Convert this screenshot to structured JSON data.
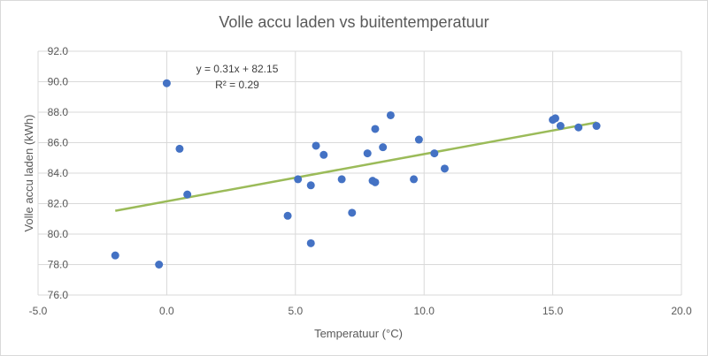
{
  "chart_data": {
    "type": "scatter",
    "title": "Volle accu laden vs buitentemperatuur",
    "xlabel": "Temperatuur (°C)",
    "ylabel": "Volle accu laden (kWh)",
    "xlim": [
      -5,
      20
    ],
    "ylim": [
      76,
      92
    ],
    "xticks": [
      -5,
      0,
      5,
      10,
      15,
      20
    ],
    "xtick_labels": [
      "-5.0",
      "0.0",
      "5.0",
      "10.0",
      "15.0",
      "20.0"
    ],
    "yticks": [
      76,
      78,
      80,
      82,
      84,
      86,
      88,
      90,
      92
    ],
    "ytick_labels": [
      "76.0",
      "78.0",
      "80.0",
      "82.0",
      "84.0",
      "86.0",
      "88.0",
      "90.0",
      "92.0"
    ],
    "grid": true,
    "legend": "none",
    "marker_color": "#4472c4",
    "trendline_color": "#9bbb59",
    "points": [
      {
        "x": -2.0,
        "y": 78.6
      },
      {
        "x": -0.3,
        "y": 78.0
      },
      {
        "x": 0.0,
        "y": 89.9
      },
      {
        "x": 0.5,
        "y": 85.6
      },
      {
        "x": 0.8,
        "y": 82.6
      },
      {
        "x": 4.7,
        "y": 81.2
      },
      {
        "x": 5.1,
        "y": 83.6
      },
      {
        "x": 5.6,
        "y": 83.2
      },
      {
        "x": 5.6,
        "y": 79.4
      },
      {
        "x": 5.8,
        "y": 85.8
      },
      {
        "x": 6.1,
        "y": 85.2
      },
      {
        "x": 6.8,
        "y": 83.6
      },
      {
        "x": 7.2,
        "y": 81.4
      },
      {
        "x": 7.8,
        "y": 85.3
      },
      {
        "x": 8.0,
        "y": 83.5
      },
      {
        "x": 8.1,
        "y": 83.4
      },
      {
        "x": 8.1,
        "y": 86.9
      },
      {
        "x": 8.4,
        "y": 85.7
      },
      {
        "x": 8.7,
        "y": 87.8
      },
      {
        "x": 9.6,
        "y": 83.6
      },
      {
        "x": 9.8,
        "y": 86.2
      },
      {
        "x": 10.4,
        "y": 85.3
      },
      {
        "x": 10.8,
        "y": 84.3
      },
      {
        "x": 15.0,
        "y": 87.5
      },
      {
        "x": 15.1,
        "y": 87.6
      },
      {
        "x": 15.3,
        "y": 87.1
      },
      {
        "x": 16.0,
        "y": 87.0
      },
      {
        "x": 16.7,
        "y": 87.1
      }
    ],
    "trendline": {
      "x_range": [
        -2,
        16.7
      ],
      "slope": 0.31,
      "intercept": 82.15,
      "equation": "y = 0.31x + 82.15",
      "r_squared": "R² = 0.29"
    }
  }
}
